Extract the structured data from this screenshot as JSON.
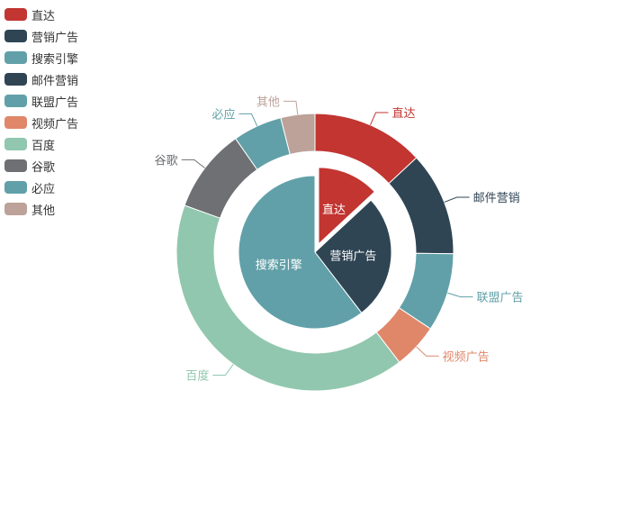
{
  "chart_data": {
    "type": "pie",
    "title": "",
    "legend": {
      "position": "top-left",
      "items": [
        {
          "label": "直达",
          "color": "#c23531"
        },
        {
          "label": "营销广告",
          "color": "#2f4554"
        },
        {
          "label": "搜索引擎",
          "color": "#61a0a8"
        },
        {
          "label": "邮件营销",
          "color": "#2f4554"
        },
        {
          "label": "联盟广告",
          "color": "#61a0a8"
        },
        {
          "label": "视频广告",
          "color": "#e0876a"
        },
        {
          "label": "百度",
          "color": "#91c7ae"
        },
        {
          "label": "谷歌",
          "color": "#6e7074"
        },
        {
          "label": "必应",
          "color": "#61a0a8"
        },
        {
          "label": "其他",
          "color": "#bda29a"
        }
      ]
    },
    "series": [
      {
        "ring": "inner",
        "selected": "直达",
        "slices": [
          {
            "name": "直达",
            "value": 335,
            "color": "#c23531"
          },
          {
            "name": "营销广告",
            "value": 679,
            "color": "#2f4554"
          },
          {
            "name": "搜索引擎",
            "value": 1548,
            "color": "#61a0a8"
          }
        ]
      },
      {
        "ring": "outer",
        "slices": [
          {
            "name": "直达",
            "value": 335,
            "color": "#c23531"
          },
          {
            "name": "邮件营销",
            "value": 310,
            "color": "#2f4554"
          },
          {
            "name": "联盟广告",
            "value": 234,
            "color": "#61a0a8"
          },
          {
            "name": "视频广告",
            "value": 135,
            "color": "#e0876a"
          },
          {
            "name": "百度",
            "value": 1048,
            "color": "#91c7ae"
          },
          {
            "name": "谷歌",
            "value": 251,
            "color": "#6e7074"
          },
          {
            "name": "必应",
            "value": 147,
            "color": "#61a0a8"
          },
          {
            "name": "其他",
            "value": 102,
            "color": "#bda29a"
          }
        ]
      }
    ]
  }
}
